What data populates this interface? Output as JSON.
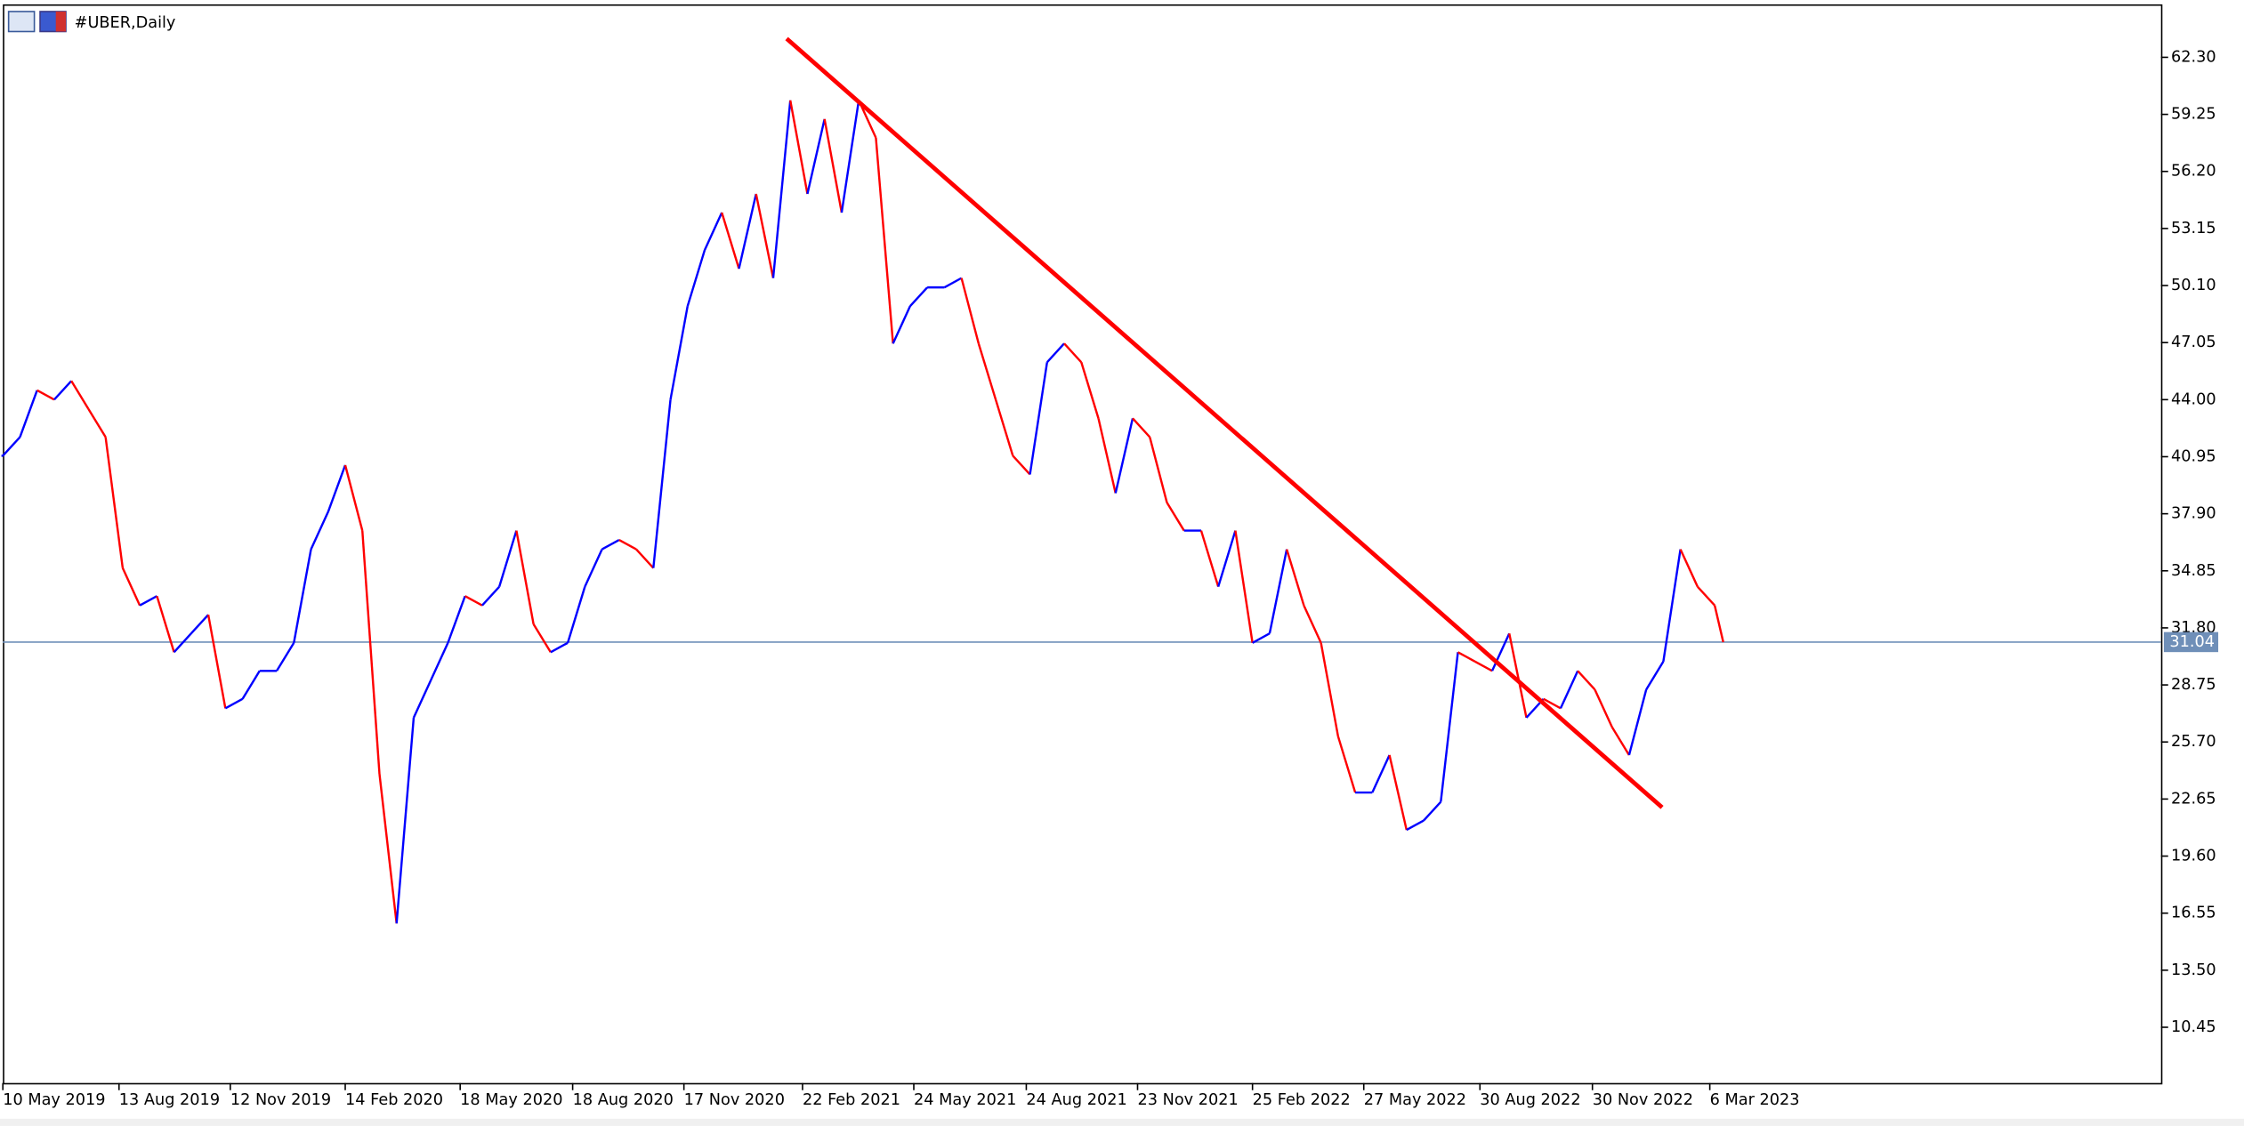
{
  "chart_data": {
    "type": "line",
    "title": "#UBER,Daily",
    "x": [
      "2019-05-10",
      "2019-05-24",
      "2019-06-07",
      "2019-06-21",
      "2019-07-05",
      "2019-07-19",
      "2019-08-02",
      "2019-08-16",
      "2019-08-30",
      "2019-09-13",
      "2019-09-27",
      "2019-10-11",
      "2019-10-25",
      "2019-11-08",
      "2019-11-22",
      "2019-12-06",
      "2019-12-20",
      "2020-01-03",
      "2020-01-17",
      "2020-01-31",
      "2020-02-14",
      "2020-02-28",
      "2020-03-13",
      "2020-03-27",
      "2020-04-10",
      "2020-04-24",
      "2020-05-08",
      "2020-05-22",
      "2020-06-05",
      "2020-06-19",
      "2020-07-03",
      "2020-07-17",
      "2020-07-31",
      "2020-08-14",
      "2020-08-28",
      "2020-09-11",
      "2020-09-25",
      "2020-10-09",
      "2020-10-23",
      "2020-11-06",
      "2020-11-20",
      "2020-12-04",
      "2020-12-18",
      "2021-01-01",
      "2021-01-15",
      "2021-01-29",
      "2021-02-12",
      "2021-02-26",
      "2021-03-12",
      "2021-03-26",
      "2021-04-09",
      "2021-04-23",
      "2021-05-07",
      "2021-05-21",
      "2021-06-04",
      "2021-06-18",
      "2021-07-02",
      "2021-07-16",
      "2021-07-30",
      "2021-08-13",
      "2021-08-27",
      "2021-09-10",
      "2021-09-24",
      "2021-10-08",
      "2021-10-22",
      "2021-11-05",
      "2021-11-19",
      "2021-12-03",
      "2021-12-17",
      "2021-12-31",
      "2022-01-14",
      "2022-01-28",
      "2022-02-11",
      "2022-02-25",
      "2022-03-11",
      "2022-03-25",
      "2022-04-08",
      "2022-04-22",
      "2022-05-06",
      "2022-05-20",
      "2022-06-03",
      "2022-06-17",
      "2022-07-01",
      "2022-07-15",
      "2022-07-29",
      "2022-08-12",
      "2022-08-26",
      "2022-09-09",
      "2022-09-23",
      "2022-10-07",
      "2022-10-21",
      "2022-11-04",
      "2022-11-18",
      "2022-12-02",
      "2022-12-16",
      "2022-12-30",
      "2023-01-13",
      "2023-01-27",
      "2023-02-10",
      "2023-02-24",
      "2023-03-10",
      "2023-03-17"
    ],
    "values": [
      41,
      42,
      44.5,
      44,
      45,
      43.5,
      42,
      35,
      33,
      33.5,
      30.5,
      31.5,
      32.5,
      27.5,
      28,
      29.5,
      29.5,
      31,
      36,
      38,
      40.5,
      37,
      24,
      16,
      27,
      29,
      31,
      33.5,
      33,
      34,
      37,
      32,
      30.5,
      31,
      34,
      36,
      36.5,
      36,
      35,
      44,
      49,
      52,
      54,
      51,
      55,
      50.5,
      60,
      55,
      59,
      54,
      60,
      58,
      47,
      49,
      50,
      50,
      50.5,
      47,
      44,
      41,
      40,
      46,
      47,
      46,
      43,
      39,
      43,
      42,
      38.5,
      37,
      37,
      34,
      37,
      31,
      31.5,
      36,
      33,
      31,
      26,
      23,
      23,
      25,
      21,
      21.5,
      22.5,
      30.5,
      30,
      29.5,
      31.5,
      27,
      28,
      27.5,
      29.5,
      28.5,
      26.5,
      25,
      28.5,
      30,
      36,
      34,
      33,
      31.04
    ],
    "up_color": "#0000ff",
    "down_color": "#ff0000",
    "xlim": [
      "2019-05-10",
      "2024-03-09"
    ],
    "xticks": [
      {
        "value": "2019-05-10",
        "label": "10 May 2019"
      },
      {
        "value": "2019-08-13",
        "label": "13 Aug 2019"
      },
      {
        "value": "2019-11-12",
        "label": "12 Nov 2019"
      },
      {
        "value": "2020-02-14",
        "label": "14 Feb 2020"
      },
      {
        "value": "2020-05-18",
        "label": "18 May 2020"
      },
      {
        "value": "2020-08-18",
        "label": "18 Aug 2020"
      },
      {
        "value": "2020-11-17",
        "label": "17 Nov 2020"
      },
      {
        "value": "2021-02-22",
        "label": "22 Feb 2021"
      },
      {
        "value": "2021-05-24",
        "label": "24 May 2021"
      },
      {
        "value": "2021-08-24",
        "label": "24 Aug 2021"
      },
      {
        "value": "2021-11-23",
        "label": "23 Nov 2021"
      },
      {
        "value": "2022-02-25",
        "label": "25 Feb 2022"
      },
      {
        "value": "2022-05-27",
        "label": "27 May 2022"
      },
      {
        "value": "2022-08-30",
        "label": "30 Aug 2022"
      },
      {
        "value": "2022-11-30",
        "label": "30 Nov 2022"
      },
      {
        "value": "2023-03-06",
        "label": "6 Mar 2023"
      }
    ],
    "ylim": [
      7.47,
      65.13
    ],
    "yticks": [
      {
        "value": 62.3,
        "label": "62.30"
      },
      {
        "value": 59.25,
        "label": "59.25"
      },
      {
        "value": 56.2,
        "label": "56.20"
      },
      {
        "value": 53.15,
        "label": "53.15"
      },
      {
        "value": 50.1,
        "label": "50.10"
      },
      {
        "value": 47.05,
        "label": "47.05"
      },
      {
        "value": 44,
        "label": "44.00"
      },
      {
        "value": 40.95,
        "label": "40.95"
      },
      {
        "value": 37.9,
        "label": "37.90"
      },
      {
        "value": 34.85,
        "label": "34.85"
      },
      {
        "value": 31.8,
        "label": "31.80"
      },
      {
        "value": 28.75,
        "label": "28.75"
      },
      {
        "value": 25.7,
        "label": "25.70"
      },
      {
        "value": 22.65,
        "label": "22.65"
      },
      {
        "value": 19.6,
        "label": "19.60"
      },
      {
        "value": 16.55,
        "label": "16.55"
      },
      {
        "value": 13.5,
        "label": "13.50"
      },
      {
        "value": 10.45,
        "label": "10.45"
      }
    ],
    "last_price": 31.04,
    "last_price_color": "#6f8fb8",
    "trendline": {
      "x": [
        "2021-02-09",
        "2023-01-26"
      ],
      "y": [
        63.3,
        22.2
      ],
      "color": "#ff0000"
    }
  }
}
